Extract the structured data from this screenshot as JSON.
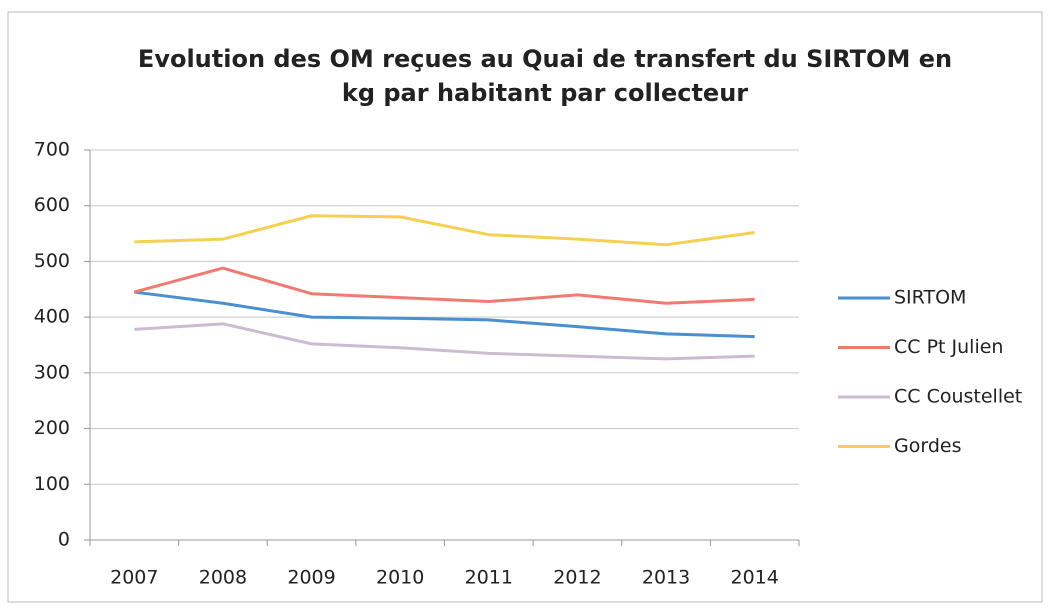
{
  "chart_data": {
    "type": "line",
    "title": "Evolution des OM reçues au Quai de transfert du SIRTOM en kg par habitant par collecteur",
    "categories": [
      "2007",
      "2008",
      "2009",
      "2010",
      "2011",
      "2012",
      "2013",
      "2014"
    ],
    "series": [
      {
        "name": "SIRTOM",
        "color": "#4a8fcf",
        "values": [
          445,
          425,
          400,
          398,
          395,
          383,
          370,
          365
        ]
      },
      {
        "name": "CC Pt Julien",
        "color": "#f07a72",
        "values": [
          445,
          488,
          442,
          435,
          428,
          440,
          425,
          432
        ]
      },
      {
        "name": "CC Coustellet",
        "color": "#cbbcd2",
        "values": [
          378,
          388,
          352,
          345,
          335,
          330,
          325,
          330
        ]
      },
      {
        "name": "Gordes",
        "color": "#f5d052",
        "values": [
          535,
          540,
          582,
          580,
          548,
          540,
          530,
          552
        ]
      }
    ],
    "ylim": [
      0,
      700
    ],
    "yticks": [
      0,
      100,
      200,
      300,
      400,
      500,
      600,
      700
    ],
    "grid": true,
    "legend": "right"
  }
}
